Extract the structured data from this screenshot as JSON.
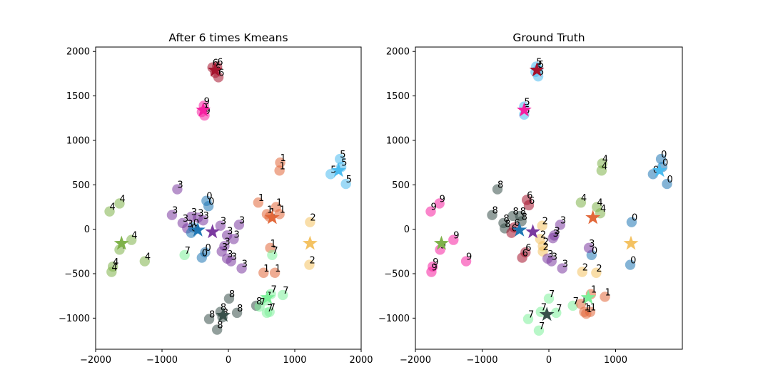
{
  "chart_data": [
    {
      "type": "scatter",
      "title": "After 6 times Kmeans",
      "xlim": [
        -2000,
        2000
      ],
      "ylim": [
        -1350,
        2050
      ],
      "xticks": [
        -2000,
        -1000,
        0,
        1000,
        2000
      ],
      "yticks": [
        -1000,
        -500,
        0,
        500,
        1000,
        1500,
        2000
      ],
      "xtick_labels": [
        "−2000",
        "−1000",
        "0",
        "1000",
        "2000"
      ],
      "ytick_labels": [
        "−1000",
        "−500",
        "0",
        "500",
        "1000",
        "1500",
        "2000"
      ],
      "palette": {
        "0": "#1f77b4",
        "1": "#e2683a",
        "2": "#f4c262",
        "3": "#7b3aa0",
        "4": "#7fb24a",
        "5": "#4cbcf0",
        "6": "#a5142e",
        "7": "#7df09a",
        "8": "#38514b",
        "9": "#f520a0"
      },
      "points": [
        {
          "x": -240,
          "y": 1820,
          "label": "6"
        },
        {
          "x": -170,
          "y": 1830,
          "label": "6"
        },
        {
          "x": -200,
          "y": 1760,
          "label": "6"
        },
        {
          "x": -150,
          "y": 1710,
          "label": "6"
        },
        {
          "x": -370,
          "y": 1390,
          "label": "9"
        },
        {
          "x": -400,
          "y": 1320,
          "label": "9"
        },
        {
          "x": -360,
          "y": 1280,
          "label": "9"
        },
        {
          "x": 780,
          "y": 750,
          "label": "1"
        },
        {
          "x": 770,
          "y": 660,
          "label": "1"
        },
        {
          "x": 450,
          "y": 300,
          "label": "1"
        },
        {
          "x": 720,
          "y": 250,
          "label": "1"
        },
        {
          "x": 580,
          "y": 170,
          "label": "1"
        },
        {
          "x": 770,
          "y": 170,
          "label": "1"
        },
        {
          "x": 620,
          "y": 140,
          "label": "1"
        },
        {
          "x": 630,
          "y": -210,
          "label": "1"
        },
        {
          "x": 530,
          "y": -490,
          "label": "1"
        },
        {
          "x": 700,
          "y": -490,
          "label": "1"
        },
        {
          "x": 1680,
          "y": 790,
          "label": "5"
        },
        {
          "x": 1700,
          "y": 700,
          "label": "5"
        },
        {
          "x": 1540,
          "y": 620,
          "label": "5"
        },
        {
          "x": 1770,
          "y": 510,
          "label": "5"
        },
        {
          "x": 1230,
          "y": 80,
          "label": "2"
        },
        {
          "x": 1220,
          "y": -400,
          "label": "2"
        },
        {
          "x": -660,
          "y": -290,
          "label": "7"
        },
        {
          "x": 660,
          "y": -290,
          "label": "7"
        },
        {
          "x": -770,
          "y": 450,
          "label": "3"
        },
        {
          "x": -850,
          "y": 160,
          "label": "3"
        },
        {
          "x": -690,
          "y": 70,
          "label": "3"
        },
        {
          "x": -560,
          "y": 140,
          "label": "3"
        },
        {
          "x": -460,
          "y": 130,
          "label": "3"
        },
        {
          "x": -620,
          "y": 10,
          "label": "3"
        },
        {
          "x": -380,
          "y": 100,
          "label": "3"
        },
        {
          "x": -120,
          "y": 40,
          "label": "3"
        },
        {
          "x": 160,
          "y": 50,
          "label": "3"
        },
        {
          "x": -20,
          "y": -70,
          "label": "3"
        },
        {
          "x": 80,
          "y": -110,
          "label": "3"
        },
        {
          "x": -60,
          "y": -190,
          "label": "3"
        },
        {
          "x": -100,
          "y": -250,
          "label": "3"
        },
        {
          "x": -20,
          "y": -330,
          "label": "3"
        },
        {
          "x": 40,
          "y": -360,
          "label": "3"
        },
        {
          "x": 200,
          "y": -440,
          "label": "3"
        },
        {
          "x": -330,
          "y": 320,
          "label": "0"
        },
        {
          "x": -300,
          "y": 260,
          "label": "0"
        },
        {
          "x": -530,
          "y": 20,
          "label": "0"
        },
        {
          "x": -560,
          "y": -40,
          "label": "0"
        },
        {
          "x": -350,
          "y": -260,
          "label": "0"
        },
        {
          "x": -400,
          "y": -320,
          "label": "0"
        },
        {
          "x": -1790,
          "y": 200,
          "label": "4"
        },
        {
          "x": -1640,
          "y": 290,
          "label": "4"
        },
        {
          "x": -1460,
          "y": -120,
          "label": "4"
        },
        {
          "x": -1640,
          "y": -230,
          "label": "4"
        },
        {
          "x": -1260,
          "y": -360,
          "label": "4"
        },
        {
          "x": -1740,
          "y": -420,
          "label": "4"
        },
        {
          "x": -1760,
          "y": -480,
          "label": "4"
        },
        {
          "x": 10,
          "y": -780,
          "label": "8"
        },
        {
          "x": 420,
          "y": -860,
          "label": "8"
        },
        {
          "x": 130,
          "y": -940,
          "label": "8"
        },
        {
          "x": -120,
          "y": -930,
          "label": "8"
        },
        {
          "x": -90,
          "y": -990,
          "label": "8"
        },
        {
          "x": -290,
          "y": -1010,
          "label": "8"
        },
        {
          "x": -170,
          "y": -1130,
          "label": "8"
        },
        {
          "x": 640,
          "y": -730,
          "label": "7"
        },
        {
          "x": 820,
          "y": -740,
          "label": "7"
        },
        {
          "x": 560,
          "y": -800,
          "label": "7"
        },
        {
          "x": 470,
          "y": -870,
          "label": "7"
        },
        {
          "x": 620,
          "y": -930,
          "label": "7"
        },
        {
          "x": 580,
          "y": -940,
          "label": "7"
        }
      ],
      "centroids": [
        {
          "x": -200,
          "y": 1790,
          "cluster": "6"
        },
        {
          "x": -380,
          "y": 1340,
          "cluster": "9"
        },
        {
          "x": 660,
          "y": 130,
          "cluster": "1"
        },
        {
          "x": 1660,
          "y": 660,
          "cluster": "5"
        },
        {
          "x": 1230,
          "y": -160,
          "cluster": "2"
        },
        {
          "x": -240,
          "y": -30,
          "cluster": "3"
        },
        {
          "x": -460,
          "y": -10,
          "cluster": "0"
        },
        {
          "x": -1610,
          "y": -160,
          "cluster": "4"
        },
        {
          "x": -80,
          "y": -970,
          "cluster": "8"
        },
        {
          "x": 590,
          "y": -770,
          "cluster": "7"
        }
      ]
    },
    {
      "type": "scatter",
      "title": "Ground Truth",
      "xlim": [
        -2000,
        2000
      ],
      "ylim": [
        -1350,
        2050
      ],
      "xticks": [
        -2000,
        -1000,
        0,
        1000
      ],
      "yticks": [
        -1000,
        -500,
        0,
        500,
        1000,
        1500,
        2000
      ],
      "xtick_labels": [
        "−2000",
        "−1000",
        "0",
        "1000"
      ],
      "ytick_labels": [
        "−1000",
        "−500",
        "0",
        "500",
        "1000",
        "1500",
        "2000"
      ],
      "palette": {
        "0": "#1f77b4",
        "1": "#e2683a",
        "2": "#f4c262",
        "3": "#7b3aa0",
        "4": "#7fb24a",
        "5": "#4cbcf0",
        "6": "#a5142e",
        "7": "#7df09a",
        "8": "#38514b",
        "9": "#f520a0"
      },
      "points": [
        {
          "x": -190,
          "y": 1830,
          "label": "5"
        },
        {
          "x": -160,
          "y": 1800,
          "label": "5"
        },
        {
          "x": -200,
          "y": 1770,
          "label": "5"
        },
        {
          "x": -160,
          "y": 1720,
          "label": "5"
        },
        {
          "x": -370,
          "y": 1380,
          "label": "5"
        },
        {
          "x": -370,
          "y": 1290,
          "label": "5"
        },
        {
          "x": 1680,
          "y": 790,
          "label": "0"
        },
        {
          "x": 1700,
          "y": 700,
          "label": "0"
        },
        {
          "x": 1560,
          "y": 620,
          "label": "0"
        },
        {
          "x": 1770,
          "y": 510,
          "label": "0"
        },
        {
          "x": 1240,
          "y": 80,
          "label": "0"
        },
        {
          "x": 1220,
          "y": -400,
          "label": "0"
        },
        {
          "x": 640,
          "y": -290,
          "label": "0"
        },
        {
          "x": 800,
          "y": 740,
          "label": "4"
        },
        {
          "x": 790,
          "y": 660,
          "label": "4"
        },
        {
          "x": 480,
          "y": 300,
          "label": "4"
        },
        {
          "x": 720,
          "y": 250,
          "label": "4"
        },
        {
          "x": 770,
          "y": 180,
          "label": "4"
        },
        {
          "x": -1770,
          "y": 200,
          "label": "9"
        },
        {
          "x": -1640,
          "y": 290,
          "label": "9"
        },
        {
          "x": -1430,
          "y": -120,
          "label": "9"
        },
        {
          "x": -1630,
          "y": -230,
          "label": "9"
        },
        {
          "x": -1240,
          "y": -360,
          "label": "9"
        },
        {
          "x": -1740,
          "y": -420,
          "label": "9"
        },
        {
          "x": -1760,
          "y": -480,
          "label": "9"
        },
        {
          "x": -770,
          "y": 450,
          "label": "8"
        },
        {
          "x": -850,
          "y": 160,
          "label": "8"
        },
        {
          "x": -680,
          "y": 70,
          "label": "8"
        },
        {
          "x": -540,
          "y": 150,
          "label": "8"
        },
        {
          "x": -430,
          "y": 150,
          "label": "8"
        },
        {
          "x": -660,
          "y": 10,
          "label": "8"
        },
        {
          "x": -410,
          "y": 90,
          "label": "8"
        },
        {
          "x": -330,
          "y": 330,
          "label": "6"
        },
        {
          "x": -300,
          "y": 270,
          "label": "6"
        },
        {
          "x": -520,
          "y": 20,
          "label": "6"
        },
        {
          "x": -560,
          "y": -40,
          "label": "6"
        },
        {
          "x": -350,
          "y": -260,
          "label": "6"
        },
        {
          "x": -400,
          "y": -320,
          "label": "6"
        },
        {
          "x": -100,
          "y": 40,
          "label": "2"
        },
        {
          "x": -130,
          "y": -110,
          "label": "2"
        },
        {
          "x": -90,
          "y": -190,
          "label": "2"
        },
        {
          "x": -90,
          "y": -250,
          "label": "2"
        },
        {
          "x": 500,
          "y": -480,
          "label": "2"
        },
        {
          "x": 710,
          "y": -490,
          "label": "2"
        },
        {
          "x": 170,
          "y": 50,
          "label": "3"
        },
        {
          "x": 80,
          "y": -70,
          "label": "3"
        },
        {
          "x": 60,
          "y": -100,
          "label": "3"
        },
        {
          "x": -20,
          "y": -330,
          "label": "3"
        },
        {
          "x": 40,
          "y": -360,
          "label": "3"
        },
        {
          "x": 200,
          "y": -440,
          "label": "3"
        },
        {
          "x": 600,
          "y": -210,
          "label": "3"
        },
        {
          "x": 0,
          "y": -780,
          "label": "7"
        },
        {
          "x": 360,
          "y": -860,
          "label": "7"
        },
        {
          "x": 110,
          "y": -940,
          "label": "7"
        },
        {
          "x": -120,
          "y": -930,
          "label": "7"
        },
        {
          "x": -310,
          "y": -1010,
          "label": "7"
        },
        {
          "x": -150,
          "y": -1140,
          "label": "7"
        },
        {
          "x": 630,
          "y": -730,
          "label": "1"
        },
        {
          "x": 840,
          "y": -760,
          "label": "1"
        },
        {
          "x": 480,
          "y": -840,
          "label": "1"
        },
        {
          "x": 530,
          "y": -930,
          "label": "1"
        },
        {
          "x": 620,
          "y": -930,
          "label": "1"
        },
        {
          "x": 560,
          "y": -950,
          "label": "1"
        }
      ],
      "centroids": [
        {
          "x": -180,
          "y": 1790,
          "cluster": "6"
        },
        {
          "x": -370,
          "y": 1340,
          "cluster": "9"
        },
        {
          "x": 660,
          "y": 130,
          "cluster": "1"
        },
        {
          "x": 1660,
          "y": 660,
          "cluster": "5"
        },
        {
          "x": 1230,
          "y": -160,
          "cluster": "2"
        },
        {
          "x": -240,
          "y": -30,
          "cluster": "3"
        },
        {
          "x": -440,
          "y": -10,
          "cluster": "0"
        },
        {
          "x": -1610,
          "y": -160,
          "cluster": "4"
        },
        {
          "x": -30,
          "y": -960,
          "cluster": "8"
        },
        {
          "x": 590,
          "y": -770,
          "cluster": "7"
        }
      ]
    }
  ]
}
